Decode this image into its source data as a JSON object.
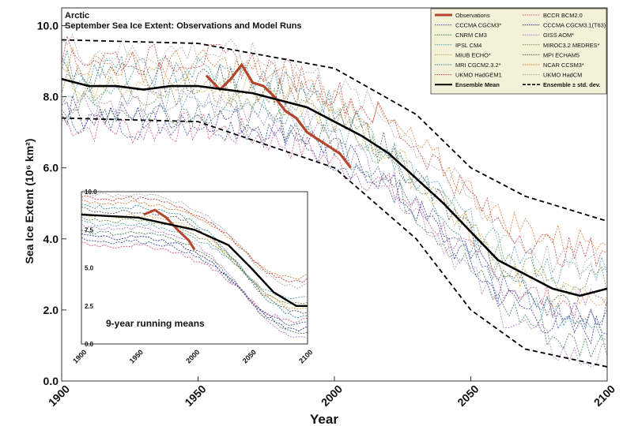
{
  "chart_data": [
    {
      "type": "line",
      "title": "Arctic",
      "subtitle": "September Sea Ice Extent: Observations and Model Runs",
      "xlabel": "Year",
      "ylabel": "Sea Ice Extent (10⁶ km²)",
      "xlim": [
        1900,
        2100
      ],
      "ylim": [
        0.0,
        10.5
      ],
      "xticks": [
        "1900",
        "1950",
        "2000",
        "2050",
        "2100"
      ],
      "yticks": [
        "0.0",
        "2.0",
        "4.0",
        "6.0",
        "8.0",
        "10.0"
      ],
      "grid": false,
      "legend_position": "top-right",
      "legend": [
        {
          "name": "Observations",
          "color": "#b5452a",
          "style": "solid-thick"
        },
        {
          "name": "BCCR BCM2.0",
          "color": "#d24a8a",
          "style": "dotted"
        },
        {
          "name": "CCCMA CGCM3*",
          "color": "#3a4fa8",
          "style": "dotted"
        },
        {
          "name": "CCCMA CGCM3.1(T63)",
          "color": "#2a2a8f",
          "style": "dotted"
        },
        {
          "name": "CNRM CM3",
          "color": "#3f7d4d",
          "style": "dotted"
        },
        {
          "name": "GISS AOM*",
          "color": "#b07ac0",
          "style": "dotted"
        },
        {
          "name": "IPSL CM4",
          "color": "#4d9fb8",
          "style": "dotted"
        },
        {
          "name": "MIROC3.2 MEDRES*",
          "color": "#6b8f3c",
          "style": "dotted"
        },
        {
          "name": "MIUB ECHO*",
          "color": "#e0a43a",
          "style": "dotted"
        },
        {
          "name": "MPI ECHAM5",
          "color": "#555555",
          "style": "dotted"
        },
        {
          "name": "MRI CGCM2.3.2*",
          "color": "#2e8b9a",
          "style": "dotted"
        },
        {
          "name": "NCAR CCSM3*",
          "color": "#d9782d",
          "style": "dotted"
        },
        {
          "name": "UKMO HadGEM1",
          "color": "#c23b3b",
          "style": "dotted"
        },
        {
          "name": "UKMO HadCM",
          "color": "#a9a9a9",
          "style": "dotted"
        },
        {
          "name": "Ensemble Mean",
          "color": "#000000",
          "style": "solid"
        },
        {
          "name": "Ensemble ± std. dev.",
          "color": "#000000",
          "style": "dashed"
        }
      ],
      "series": [
        {
          "name": "Observations",
          "x": [
            1953,
            1958,
            1962,
            1966,
            1970,
            1974,
            1978,
            1982,
            1986,
            1990,
            1994,
            1998,
            2002,
            2006
          ],
          "values": [
            8.6,
            8.2,
            8.5,
            8.9,
            8.4,
            8.3,
            8.0,
            7.6,
            7.4,
            7.0,
            6.8,
            6.6,
            6.4,
            6.0
          ]
        },
        {
          "name": "Ensemble Mean",
          "x": [
            1900,
            1910,
            1920,
            1930,
            1940,
            1950,
            1960,
            1970,
            1980,
            1990,
            2000,
            2010,
            2020,
            2030,
            2040,
            2050,
            2060,
            2070,
            2080,
            2090,
            2100
          ],
          "values": [
            8.5,
            8.3,
            8.3,
            8.2,
            8.3,
            8.3,
            8.2,
            8.1,
            7.9,
            7.7,
            7.3,
            6.9,
            6.4,
            5.7,
            5.0,
            4.2,
            3.4,
            3.0,
            2.6,
            2.4,
            2.6
          ]
        },
        {
          "name": "Ensemble ± std. dev.",
          "x": [
            1900,
            1950,
            2000,
            2030,
            2050,
            2070,
            2100
          ],
          "values": [
            9.6,
            9.5,
            8.8,
            7.5,
            6.0,
            5.2,
            4.5
          ]
        },
        {
          "name": "Ensemble ± std. dev.",
          "x": [
            1900,
            1950,
            2000,
            2030,
            2050,
            2070,
            2100
          ],
          "values": [
            7.4,
            7.3,
            6.0,
            4.0,
            2.0,
            0.9,
            0.4
          ]
        }
      ]
    },
    {
      "type": "line",
      "title": "9-year running means",
      "xlim": [
        1900,
        2100
      ],
      "ylim": [
        0.0,
        10.0
      ],
      "xticks": [
        "1900",
        "1950",
        "2000",
        "2050",
        "2100"
      ],
      "yticks": [
        "0.0",
        "2.5",
        "5.0",
        "7.5",
        "10.0"
      ],
      "series": [
        {
          "name": "Observations",
          "x": [
            1955,
            1965,
            1975,
            1985,
            1995,
            2000
          ],
          "values": [
            8.5,
            8.8,
            8.3,
            7.5,
            6.8,
            6.2
          ]
        },
        {
          "name": "Ensemble Mean",
          "x": [
            1900,
            1950,
            2000,
            2030,
            2050,
            2070,
            2090,
            2100
          ],
          "values": [
            8.5,
            8.3,
            7.5,
            6.5,
            5.0,
            3.4,
            2.5,
            2.5
          ]
        }
      ]
    }
  ]
}
